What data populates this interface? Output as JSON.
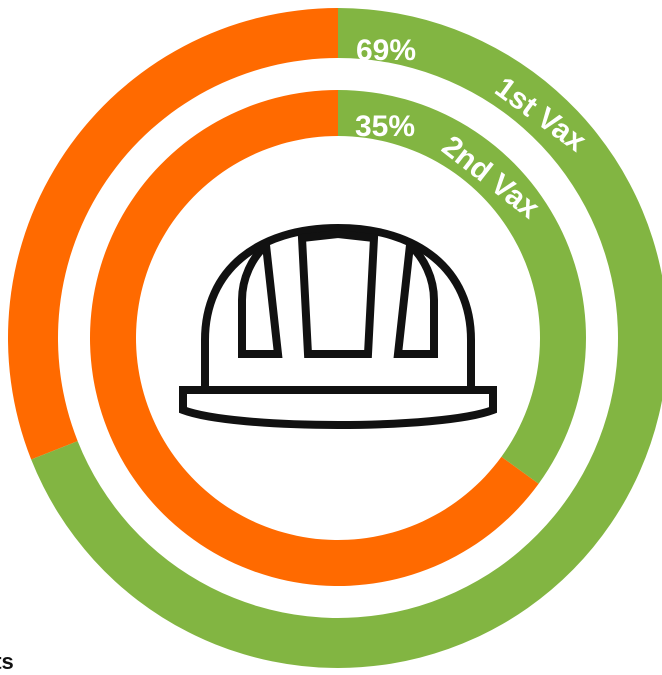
{
  "chart_data": {
    "type": "donut",
    "rings": [
      {
        "name": "1st Vax",
        "percent_label": "69%",
        "value": 69
      },
      {
        "name": "2nd Vax",
        "percent_label": "35%",
        "value": 35
      }
    ],
    "colors": {
      "vaccinated": "#82b542",
      "remaining": "#ff6a00"
    },
    "center_icon": "hard-hat-icon"
  },
  "footer": {
    "text": "cts"
  }
}
